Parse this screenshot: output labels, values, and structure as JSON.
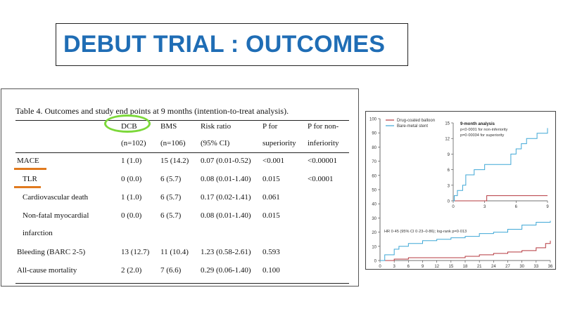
{
  "slide": {
    "title": "DEBUT TRIAL : OUTCOMES"
  },
  "table": {
    "caption": "Table 4. Outcomes and study end points at 9 months (intention-to-treat analysis).",
    "header_row1": [
      "",
      "DCB",
      "BMS",
      "Risk ratio",
      "P for",
      "P for non-"
    ],
    "header_row2": [
      "",
      "(n=102)",
      "(n=106)",
      "(95% CI)",
      "superiority",
      "inferiority"
    ],
    "rows": [
      [
        "MACE",
        "1 (1.0)",
        "15 (14.2)",
        "0.07 (0.01-0.52)",
        "<0.001",
        "<0.00001"
      ],
      [
        "TLR",
        "0 (0.0)",
        "6 (5.7)",
        "0.08 (0.01-1.40)",
        "0.015",
        "<0.0001"
      ],
      [
        "Cardiovascular death",
        "1 (1.0)",
        "6 (5.7)",
        "0.17 (0.02-1.41)",
        "0.061",
        ""
      ],
      [
        "Non-fatal myocardial",
        "0 (0.0)",
        "6 (5.7)",
        "0.08 (0.01-1.40)",
        "0.015",
        ""
      ],
      [
        "infarction",
        "",
        "",
        "",
        "",
        ""
      ],
      [
        "Bleeding (BARC 2-5)",
        "13 (12.7)",
        "11 (10.4)",
        "1.23 (0.58-2.61)",
        "0.593",
        ""
      ],
      [
        "All-cause mortality",
        "2 (2.0)",
        "7 (6.6)",
        "0.29 (0.06-1.40)",
        "0.100",
        ""
      ]
    ]
  },
  "chart_data": {
    "type": "line",
    "colors": {
      "dcb": "#B5383F",
      "bms": "#3FA7D6"
    },
    "legend": [
      "Drug-coated balloon",
      "Bare-metal stent"
    ],
    "x_ticks": [
      "0",
      "3",
      "6",
      "9",
      "12",
      "15",
      "18",
      "21",
      "24",
      "27",
      "30",
      "33",
      "36"
    ],
    "y_ticks": [
      "100",
      "90",
      "80",
      "70",
      "60",
      "50",
      "40",
      "30",
      "20",
      "10",
      "0"
    ],
    "xlim": [
      0,
      36
    ],
    "ylim": [
      0,
      100
    ],
    "annotation": "HR 0·45 (95% CI 0·23–0·86); log-rank p=0·013",
    "series": [
      {
        "name": "Drug-coated balloon",
        "x": [
          0,
          3,
          6,
          9,
          12,
          15,
          18,
          21,
          24,
          27,
          30,
          33,
          35,
          36
        ],
        "y": [
          0,
          1,
          2,
          2,
          2,
          2,
          3,
          4,
          5,
          6,
          7,
          9,
          12,
          14
        ]
      },
      {
        "name": "Bare-metal stent",
        "x": [
          0,
          1,
          3,
          4,
          6,
          9,
          12,
          15,
          18,
          21,
          24,
          27,
          30,
          33,
          36
        ],
        "y": [
          0,
          4,
          8,
          10,
          12,
          14,
          15,
          16,
          17,
          19,
          20,
          22,
          25,
          27,
          28
        ]
      }
    ],
    "inset": {
      "title": "9-month analysis",
      "lines": [
        "p<0·0001 for non-inferiority",
        "p=0·00034 for superiority"
      ],
      "x_ticks": [
        "0",
        "3",
        "6",
        "9"
      ],
      "y_ticks": [
        "15",
        "12",
        "9",
        "6",
        "3",
        "0"
      ],
      "xlim": [
        0,
        9
      ],
      "ylim": [
        0,
        15
      ],
      "series": [
        {
          "name": "Drug-coated balloon",
          "x": [
            0,
            3.2,
            9
          ],
          "y": [
            0,
            1,
            1
          ]
        },
        {
          "name": "Bare-metal stent",
          "x": [
            0,
            0.1,
            0.4,
            0.9,
            1.2,
            2,
            3,
            4,
            5,
            5.5,
            6,
            6.5,
            7,
            8,
            9
          ],
          "y": [
            0,
            1,
            2,
            3,
            5,
            6,
            7,
            7,
            7,
            9,
            10,
            11,
            12,
            13,
            14
          ]
        }
      ]
    }
  }
}
